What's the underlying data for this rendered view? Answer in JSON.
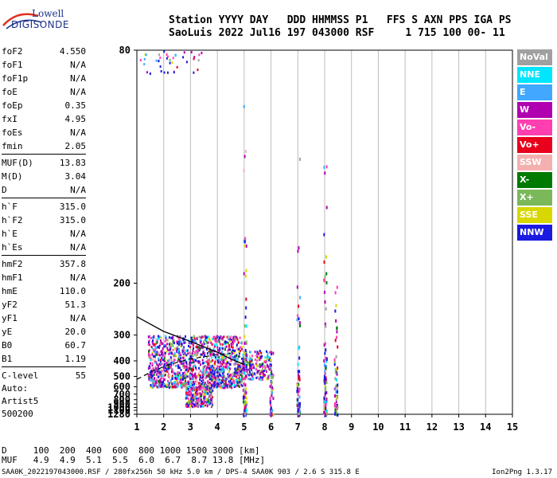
{
  "logo": {
    "line1": "Lowell",
    "line2": "DIGISONDE"
  },
  "header": {
    "line1": "Station YYYY DAY   DDD HHMMSS P1   FFS S AXN PPS IGA PS",
    "line2": "SaoLuis 2022 Jul16 197 043000 RSF     1 715 100 00- 11"
  },
  "params": [
    {
      "k": "foF2",
      "v": "4.550"
    },
    {
      "k": "foF1",
      "v": "N/A"
    },
    {
      "k": "foF1p",
      "v": "N/A"
    },
    {
      "k": "foE",
      "v": "N/A"
    },
    {
      "k": "foEp",
      "v": "0.35"
    },
    {
      "k": "fxI",
      "v": "4.95"
    },
    {
      "k": "foEs",
      "v": "N/A"
    },
    {
      "k": "fmin",
      "v": "2.05"
    },
    {
      "k": "MUF(D)",
      "v": "13.83"
    },
    {
      "k": "M(D)",
      "v": "3.04"
    },
    {
      "k": "D",
      "v": "N/A"
    },
    {
      "k": "h`F",
      "v": "315.0"
    },
    {
      "k": "h`F2",
      "v": "315.0"
    },
    {
      "k": "h`E",
      "v": "N/A"
    },
    {
      "k": "h`Es",
      "v": "N/A"
    },
    {
      "k": "hmF2",
      "v": "357.8"
    },
    {
      "k": "hmF1",
      "v": "N/A"
    },
    {
      "k": "hmE",
      "v": "110.0"
    },
    {
      "k": "yF2",
      "v": "51.3"
    },
    {
      "k": "yF1",
      "v": "N/A"
    },
    {
      "k": "yE",
      "v": "20.0"
    },
    {
      "k": "B0",
      "v": "60.7"
    },
    {
      "k": "B1",
      "v": "1.19"
    },
    {
      "k": "C-level",
      "v": "55"
    }
  ],
  "auto": {
    "line1": "Auto:",
    "line2": "Artist5",
    "line3": "500200"
  },
  "legend": [
    {
      "label": "NoVal",
      "color": "#a0a0a0"
    },
    {
      "label": "NNE",
      "color": "#00e6ff"
    },
    {
      "label": "E",
      "color": "#40a8ff"
    },
    {
      "label": "W",
      "color": "#b000b0"
    },
    {
      "label": "Vo-",
      "color": "#ff3fb0"
    },
    {
      "label": "Vo+",
      "color": "#e8001c"
    },
    {
      "label": "SSW",
      "color": "#f4b0b0"
    },
    {
      "label": "X-",
      "color": "#007a00"
    },
    {
      "label": "X+",
      "color": "#7ab85a"
    },
    {
      "label": "SSE",
      "color": "#d8d800"
    },
    {
      "label": "NNW",
      "color": "#1a1ae0"
    }
  ],
  "footer": {
    "line1": "D     100  200  400  600  800 1000 1500 3000 [km]",
    "line2": "MUF   4.9  4.9  5.1  5.5  6.0  6.7  8.7 13.8 [MHz]"
  },
  "bottom": {
    "text": "SAA0K_2022197043000.RSF / 280fx256h 50 kHz 5.0 km / DPS-4 SAA0K 903 / 2.6 S 315.8 E",
    "version": "Ion2Png 1.3.17"
  },
  "chart_data": {
    "type": "scatter",
    "xlim": [
      1,
      15
    ],
    "ylim": [
      80,
      1280
    ],
    "x_ticks": [
      1,
      2,
      3,
      4,
      5,
      6,
      7,
      8,
      9,
      10,
      11,
      12,
      13,
      14,
      15
    ],
    "y_ticks": [
      80,
      200,
      300,
      400,
      500,
      600,
      700,
      800,
      900,
      1000,
      1100,
      1280
    ],
    "y_scale": "reciprocal",
    "grid": "vertical",
    "legend_placement": "right",
    "profile_solid": [
      [
        1.0,
        255
      ],
      [
        2.0,
        290
      ],
      [
        3.0,
        320
      ],
      [
        4.0,
        360
      ],
      [
        4.5,
        390
      ],
      [
        5.0,
        420
      ]
    ],
    "profile_dashed": [
      [
        1.0,
        525
      ],
      [
        1.6,
        460
      ],
      [
        2.2,
        420
      ],
      [
        3.0,
        390
      ],
      [
        4.0,
        370
      ],
      [
        4.5,
        365
      ]
    ],
    "clusters": [
      {
        "x0": 1.4,
        "x1": 4.9,
        "y0": 300,
        "y1": 600,
        "count": 1400
      },
      {
        "x0": 2.8,
        "x1": 3.8,
        "y0": 600,
        "y1": 950,
        "count": 260
      },
      {
        "x0": 4.9,
        "x1": 6.0,
        "y0": 350,
        "y1": 520,
        "count": 220
      },
      {
        "x0": 1.1,
        "x1": 3.4,
        "y0": 80,
        "y1": 85,
        "count": 40
      }
    ],
    "lines": [
      {
        "x": 5.0,
        "y0": 80,
        "y1": 1280,
        "count": 80
      },
      {
        "x": 6.0,
        "y0": 350,
        "y1": 1280,
        "count": 40
      },
      {
        "x": 7.0,
        "y0": 80,
        "y1": 1280,
        "count": 60
      },
      {
        "x": 8.0,
        "y0": 80,
        "y1": 1280,
        "count": 90
      },
      {
        "x": 8.4,
        "y0": 200,
        "y1": 1280,
        "count": 60
      }
    ]
  }
}
